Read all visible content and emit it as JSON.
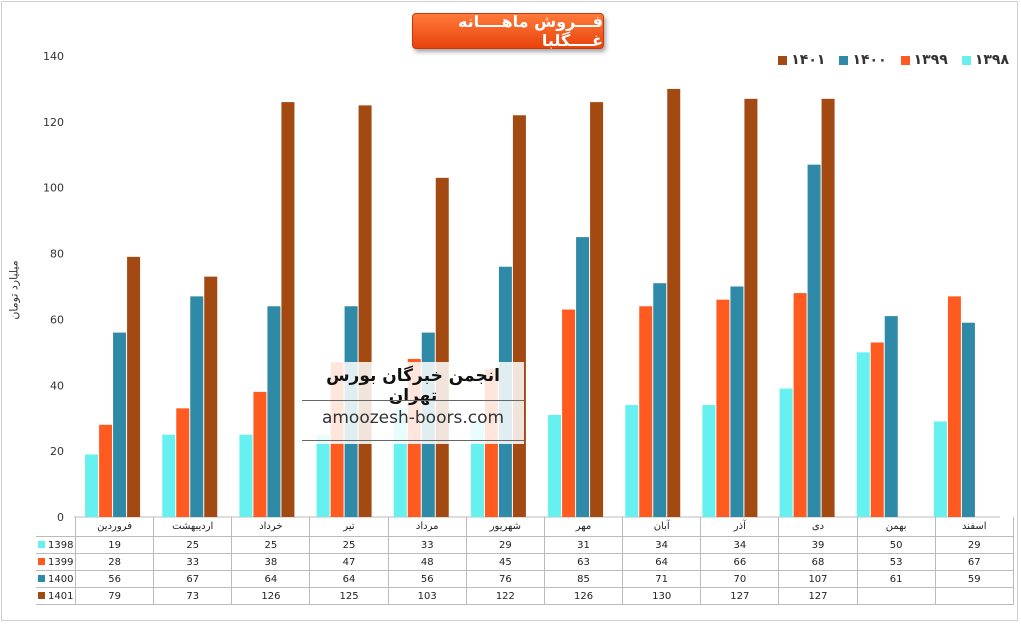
{
  "chart_data": {
    "type": "bar",
    "title": "فـــروش ماهــــانه غــــگلبا",
    "ylabel": "میلیارد تومان",
    "ylim": [
      0,
      140
    ],
    "yticks": [
      0,
      20,
      40,
      60,
      80,
      100,
      120,
      140
    ],
    "grid": false,
    "legend_position": "top-right",
    "categories": [
      "فروردین",
      "اردیبهشت",
      "خرداد",
      "تیر",
      "مرداد",
      "شهریور",
      "مهر",
      "آبان",
      "آذر",
      "دی",
      "بهمن",
      "اسفند"
    ],
    "series": [
      {
        "name": "1398",
        "legend_label": "۱۳۹۸",
        "color": "#66f0f0",
        "values": [
          19,
          25,
          25,
          25,
          33,
          29,
          31,
          34,
          34,
          39,
          50,
          29
        ]
      },
      {
        "name": "1399",
        "legend_label": "۱۳۹۹",
        "color": "#ff5a1f",
        "values": [
          28,
          33,
          38,
          47,
          48,
          45,
          63,
          64,
          66,
          68,
          53,
          67
        ]
      },
      {
        "name": "1400",
        "legend_label": "۱۴۰۰",
        "color": "#2f8aa8",
        "values": [
          56,
          67,
          64,
          64,
          56,
          76,
          85,
          71,
          70,
          107,
          61,
          59
        ]
      },
      {
        "name": "1401",
        "legend_label": "۱۴۰۱",
        "color": "#a34a12",
        "values": [
          79,
          73,
          126,
          125,
          103,
          122,
          126,
          130,
          127,
          127,
          null,
          null
        ]
      }
    ]
  },
  "watermark": {
    "title": "انجمن خبرگان بورس تهران",
    "url": "amoozesh-boors.com"
  }
}
